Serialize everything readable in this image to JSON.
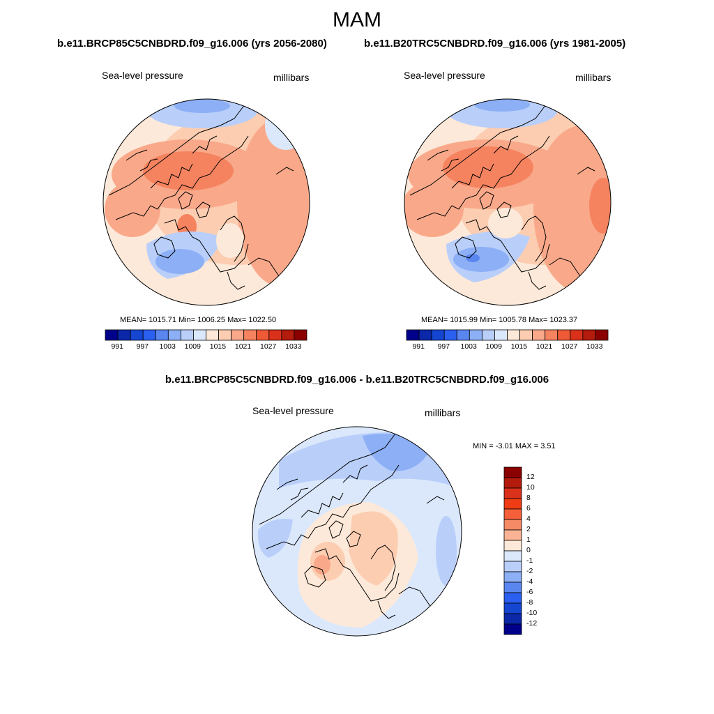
{
  "season": "MAM",
  "panels": [
    {
      "case_title": "b.e11.BRCP85C5CNBDRD.f09_g16.006 (yrs 2056-2080)",
      "variable": "Sea-level pressure",
      "units": "millibars",
      "stats": {
        "mean": "1015.71",
        "min": "1006.25",
        "max": "1022.50",
        "text": "MEAN= 1015.71  Min= 1006.25  Max= 1022.50"
      }
    },
    {
      "case_title": "b.e11.B20TRC5CNBDRD.f09_g16.006 (yrs 1981-2005)",
      "variable": "Sea-level pressure",
      "units": "millibars",
      "stats": {
        "mean": "1015.99",
        "min": "1005.78",
        "max": "1023.37",
        "text": "MEAN= 1015.99  Min= 1005.78  Max= 1023.37"
      }
    }
  ],
  "difference": {
    "title": "b.e11.BRCP85C5CNBDRD.f09_g16.006 - b.e11.B20TRC5CNBDRD.f09_g16.006",
    "variable": "Sea-level pressure",
    "units": "millibars",
    "minmax_text": "MIN =  -3.01 MAX =   3.51",
    "min": "-3.01",
    "max": "3.51"
  },
  "colorbar_abs": {
    "tick_labels": [
      "991",
      "997",
      "1003",
      "1009",
      "1015",
      "1021",
      "1027",
      "1033"
    ],
    "colors": [
      "#00008b",
      "#0a28a8",
      "#1446d2",
      "#2b5ff0",
      "#5a86f0",
      "#8caff5",
      "#b9cffa",
      "#dbe8fc",
      "#fde9d9",
      "#fccdb1",
      "#f9a98a",
      "#f5835f",
      "#ef5a36",
      "#d9311a",
      "#b31b0c",
      "#8b0000"
    ]
  },
  "colorbar_diff": {
    "tick_labels": [
      "12",
      "10",
      "8",
      "6",
      "4",
      "2",
      "1",
      "0",
      "-1",
      "-2",
      "-4",
      "-6",
      "-8",
      "-10",
      "-12"
    ],
    "colors": [
      "#8b0000",
      "#b31b0c",
      "#d9311a",
      "#ef3c14",
      "#f5603a",
      "#f58a66",
      "#fab394",
      "#fde9d9",
      "#dbe8fc",
      "#b9cffa",
      "#8caff5",
      "#5a86f0",
      "#2b5ff0",
      "#1446d2",
      "#0a28a8",
      "#00008b"
    ]
  },
  "map_colors": {
    "ocean_bg": "#fde9d9",
    "light_red": "#fccdb1",
    "med_red": "#f9a98a",
    "strong_red": "#f5835f",
    "light_blue": "#b9cffa",
    "pale_blue": "#dbe8fc",
    "med_blue": "#8caff5",
    "strong_blue": "#5a86f0"
  }
}
